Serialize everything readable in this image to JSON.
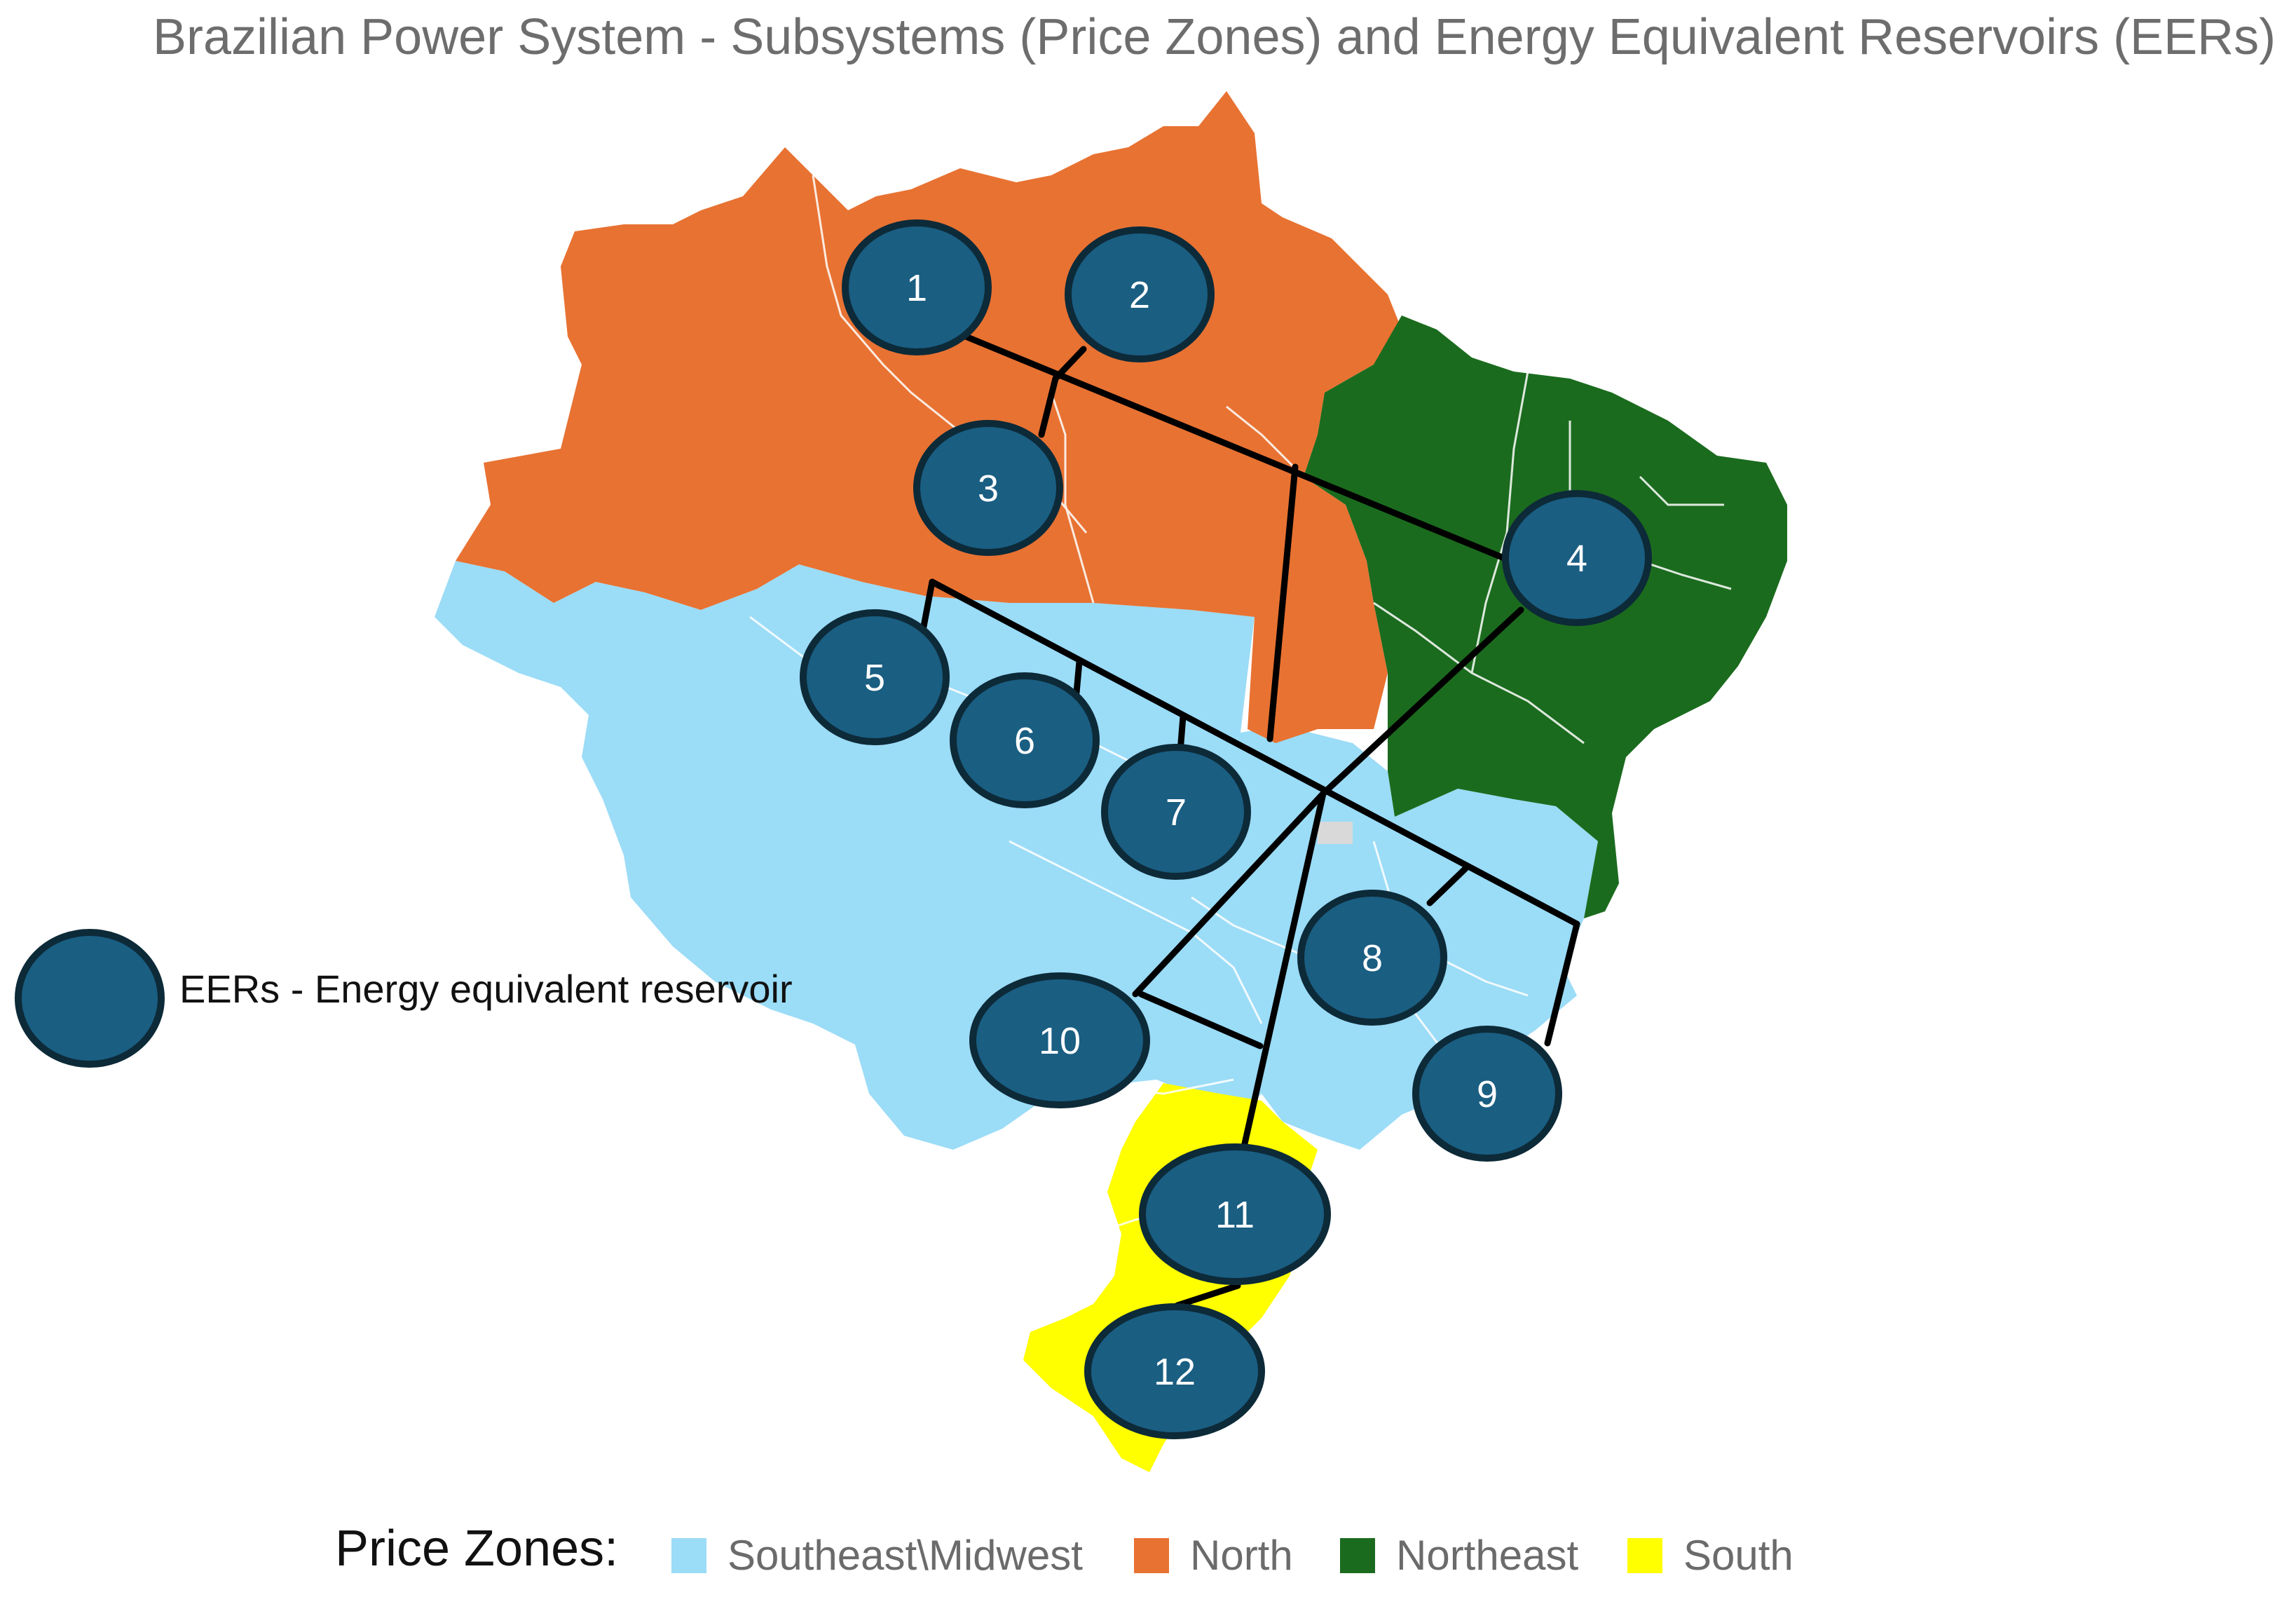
{
  "title": "Brazilian Power System - Subsystems (Price Zones) and Energy Equivalent Reservoirs (EERs)",
  "eer_legend": {
    "label": "EERs - Energy equivalent reservoir",
    "icon": "dark-blue-ellipse"
  },
  "price_zones": {
    "title": "Price Zones:",
    "items": [
      {
        "label": "Southeast\\Midwest",
        "color": "#9bdcf7"
      },
      {
        "label": "North",
        "color": "#e87232"
      },
      {
        "label": "Northeast",
        "color": "#1b6b1e"
      },
      {
        "label": "South",
        "color": "#ffff00"
      }
    ]
  },
  "colors": {
    "eer_fill": "#1a5e82",
    "eer_stroke": "#0d2a38",
    "connection_line": "#000000",
    "federal_district": "#d9d9d9",
    "state_borders": "#ffffff"
  },
  "eers": [
    {
      "id": "1",
      "zone": "North"
    },
    {
      "id": "2",
      "zone": "North"
    },
    {
      "id": "3",
      "zone": "North"
    },
    {
      "id": "4",
      "zone": "Northeast"
    },
    {
      "id": "5",
      "zone": "Southeast\\Midwest"
    },
    {
      "id": "6",
      "zone": "Southeast\\Midwest"
    },
    {
      "id": "7",
      "zone": "Southeast\\Midwest"
    },
    {
      "id": "8",
      "zone": "Southeast\\Midwest"
    },
    {
      "id": "9",
      "zone": "Southeast\\Midwest"
    },
    {
      "id": "10",
      "zone": "Southeast\\Midwest"
    },
    {
      "id": "11",
      "zone": "South"
    },
    {
      "id": "12",
      "zone": "South"
    }
  ]
}
